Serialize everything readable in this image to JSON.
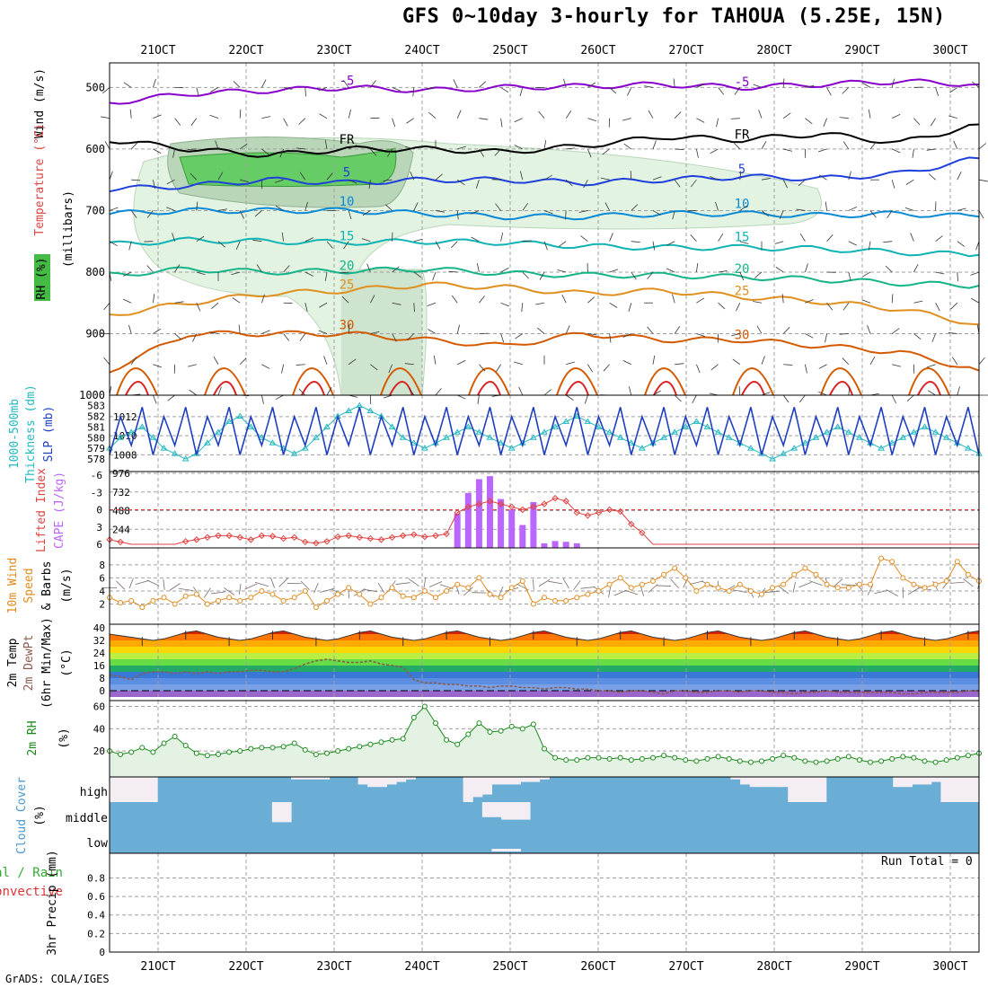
{
  "title": "GFS 0~10day 3-hourly for TAHOUA (5.25E, 15N)",
  "credit": "GrADS: COLA/IGES",
  "run_total": "Run Total = 0",
  "date_ticks": [
    "21OCT",
    "22OCT",
    "23OCT",
    "24OCT",
    "25OCT",
    "26OCT",
    "27OCT",
    "28OCT",
    "29OCT",
    "30OCT"
  ],
  "panel_labels": {
    "profile": [
      "Wind (m/s)",
      "Temperature (°C)",
      "RH (%)",
      "(millibars)"
    ],
    "slp": [
      "1000-500mb",
      "Thickness (dm)",
      "SLP (mb)"
    ],
    "cape": [
      "Lifted Index",
      "CAPE (J/kg)"
    ],
    "wind10": [
      "10m Wind",
      "Speed",
      "(m/s)",
      "& Barbs"
    ],
    "temp2m": [
      "2m Temp",
      "2m DewPt",
      "(6hr Min/Max)",
      "(°C)"
    ],
    "rh2m": [
      "2m RH",
      "(%)"
    ],
    "cloud": [
      "Cloud Cover",
      "(%)"
    ],
    "precip": [
      "Total / Rain",
      "Convective",
      "3hr Precip (mm)"
    ]
  },
  "chart_data": [
    {
      "type": "heatmap",
      "panel": "profile",
      "y_ticks": [
        500,
        600,
        700,
        800,
        900,
        1000
      ],
      "ylim": [
        1000,
        460
      ],
      "temperature_contours": [
        {
          "label": "-5",
          "color": "#8800cc",
          "levels": [
            525,
            510,
            505,
            500,
            505,
            500,
            498,
            495,
            500,
            495,
            490,
            495
          ]
        },
        {
          "label": "FR",
          "color": "#000000",
          "levels": [
            585,
            600,
            610,
            600,
            600,
            605,
            595,
            580,
            585,
            575,
            590,
            560
          ]
        },
        {
          "label": "5",
          "color": "#1f3fdb",
          "levels": [
            665,
            660,
            650,
            655,
            650,
            650,
            655,
            650,
            645,
            648,
            640,
            615
          ]
        },
        {
          "label": "10",
          "color": "#0a8ad6",
          "levels": [
            705,
            700,
            700,
            700,
            705,
            710,
            710,
            705,
            705,
            708,
            705,
            710
          ]
        },
        {
          "label": "15",
          "color": "#10b3b3",
          "levels": [
            755,
            748,
            750,
            752,
            750,
            752,
            758,
            760,
            760,
            762,
            768,
            772
          ]
        },
        {
          "label": "20",
          "color": "#15b38a",
          "levels": [
            805,
            795,
            800,
            798,
            795,
            802,
            805,
            805,
            808,
            812,
            818,
            822
          ]
        },
        {
          "label": "25",
          "color": "#e09020",
          "levels": [
            870,
            850,
            835,
            830,
            820,
            825,
            835,
            830,
            840,
            848,
            860,
            885
          ]
        },
        {
          "label": "30",
          "color": "#d45a00",
          "levels": [
            960,
            900,
            900,
            900,
            910,
            920,
            900,
            910,
            910,
            920,
            930,
            960
          ]
        }
      ],
      "rh_levels": [
        "30",
        "70",
        "90"
      ]
    },
    {
      "type": "line",
      "panel": "slp",
      "series": [
        {
          "name": "SLP (mb)",
          "color": "#1f3fbf",
          "values": [
            1008,
            1012,
            1009,
            1013,
            1008,
            1012,
            1009,
            1013,
            1008,
            1012,
            1009,
            1013,
            1008,
            1012,
            1009,
            1013,
            1008,
            1012,
            1009,
            1013,
            1008,
            1012,
            1009,
            1013,
            1008,
            1012,
            1009,
            1013,
            1008,
            1012,
            1009,
            1013,
            1008,
            1012,
            1009,
            1013,
            1008,
            1012,
            1009,
            1013,
            1008,
            1012,
            1009,
            1013,
            1008,
            1012,
            1009,
            1013,
            1008,
            1012,
            1009,
            1013,
            1008,
            1012,
            1009,
            1013,
            1008,
            1012,
            1009,
            1013,
            1008,
            1012,
            1009,
            1013,
            1008,
            1012,
            1009,
            1013,
            1008,
            1012,
            1009,
            1013,
            1008,
            1012,
            1009,
            1013,
            1008,
            1012,
            1009,
            1013,
            1008
          ]
        },
        {
          "name": "1000-500mb Thickness (dm)",
          "color": "#22b8c0",
          "values": [
            579,
            580,
            580.5,
            581,
            580,
            579,
            578.5,
            578,
            578.5,
            579.5,
            580.5,
            581.5,
            582,
            581,
            580,
            579.5,
            579,
            578.5,
            579,
            580,
            581,
            582,
            582.5,
            583,
            582.5,
            582,
            581,
            580,
            579.5,
            579,
            579.5,
            580,
            580.5,
            581,
            580.5,
            580,
            579.5,
            579,
            579.5,
            580,
            580.5,
            581,
            581.5,
            582,
            581.5,
            581,
            580.5,
            580,
            579.5,
            579,
            579.5,
            580,
            580.5,
            581,
            581.5,
            581,
            580.5,
            580,
            579.5,
            579,
            578.5,
            578,
            578.5,
            579,
            579.5,
            580,
            580.5,
            581,
            580.5,
            580,
            579.5,
            579,
            579.5,
            580,
            580.5,
            581,
            580.5,
            580,
            579.5,
            579,
            578.5
          ]
        }
      ],
      "y_ticks_left": [
        578,
        579,
        580,
        581,
        582,
        583
      ],
      "y_ticks_right": [
        1008,
        1010,
        1012
      ]
    },
    {
      "type": "bar",
      "panel": "cape",
      "cape_values": [
        0,
        0,
        0,
        0,
        0,
        0,
        0,
        0,
        0,
        0,
        0,
        0,
        0,
        0,
        0,
        0,
        0,
        0,
        0,
        0,
        0,
        0,
        0,
        0,
        0,
        0,
        0,
        0,
        0,
        0,
        0,
        0,
        450,
        720,
        900,
        940,
        640,
        500,
        300,
        600,
        60,
        90,
        80,
        60,
        0,
        0,
        0,
        0,
        0,
        0,
        0,
        0,
        0,
        0,
        0,
        0,
        0,
        0,
        0,
        0,
        0,
        0,
        0,
        0,
        0,
        0,
        0,
        0,
        0,
        0,
        0,
        0,
        0,
        0,
        0,
        0,
        0,
        0,
        0,
        0,
        0
      ],
      "lifted_index": [
        5.2,
        5.6,
        6,
        6,
        6,
        6,
        6,
        5.5,
        5.2,
        4.8,
        4.5,
        4.5,
        4.8,
        5.2,
        4.5,
        4.6,
        5,
        4.8,
        5.6,
        5.8,
        5.5,
        4.7,
        4.5,
        4.8,
        5,
        5.2,
        4.8,
        4.5,
        4.3,
        4.7,
        4.5,
        4.2,
        0.5,
        -0.5,
        -1,
        -1.5,
        -1,
        -0.5,
        0,
        -0.5,
        -1,
        -2,
        -1.5,
        0.5,
        1,
        0.5,
        0,
        0.3,
        2.5,
        4,
        6,
        6,
        6,
        6,
        6,
        6,
        6,
        6,
        6,
        6,
        6,
        6,
        6,
        6,
        6,
        6,
        6,
        6,
        6,
        6,
        6,
        6,
        6,
        6,
        6,
        6,
        6,
        6,
        6,
        6,
        6
      ],
      "y_ticks_left": [
        "-6",
        "-3",
        "0",
        "3",
        "6"
      ],
      "y_ticks_right": [
        244,
        488,
        732,
        976
      ]
    },
    {
      "type": "line",
      "panel": "wind10",
      "series": [
        {
          "name": "10m Wind Speed",
          "color": "#e08a1e",
          "values": [
            3,
            2.2,
            2.5,
            1.5,
            2.5,
            3,
            2,
            3.2,
            3.5,
            2,
            2.5,
            3,
            2.5,
            3,
            4,
            3.5,
            2.5,
            3,
            4,
            1.5,
            2.5,
            3.5,
            4.5,
            3.5,
            2,
            3,
            4.5,
            3.2,
            3,
            4,
            3,
            4,
            5,
            4.5,
            6,
            3.5,
            3,
            4.5,
            5.5,
            2,
            3,
            2.5,
            2.5,
            3,
            3.5,
            4,
            5,
            6,
            4.5,
            5,
            5.5,
            6.5,
            7.5,
            6,
            4,
            5,
            4.5,
            4,
            5,
            4,
            3.5,
            4.5,
            5,
            6.5,
            7.5,
            6.5,
            5,
            4.5,
            4.5,
            5,
            5,
            9,
            8.5,
            6,
            5,
            4.5,
            5,
            5.5,
            8.5,
            6.5,
            5.5
          ]
        }
      ],
      "y_ticks": [
        2,
        4,
        6,
        8
      ]
    },
    {
      "type": "area",
      "panel": "temp2m",
      "series": [
        {
          "name": "2m Temp",
          "color": "#333333",
          "values": [
            36,
            35,
            34,
            33,
            32,
            33,
            35,
            37,
            38,
            36,
            34,
            33,
            32,
            33,
            35,
            37,
            38,
            36,
            34,
            33,
            32,
            33,
            35,
            37,
            38,
            36,
            34,
            33,
            32,
            33,
            35,
            37,
            38,
            36,
            34,
            33,
            32,
            33,
            35,
            37,
            38,
            36,
            34,
            33,
            32,
            33,
            35,
            37,
            38,
            36,
            34,
            33,
            32,
            33,
            35,
            37,
            38,
            36,
            34,
            33,
            32,
            33,
            35,
            37,
            38,
            36,
            34,
            33,
            32,
            33,
            35,
            37,
            38,
            36,
            34,
            33,
            32,
            33,
            35,
            37,
            38
          ]
        },
        {
          "name": "2m DewPt",
          "color": "#8a5a4a",
          "values": [
            10,
            9,
            7,
            11,
            12,
            12,
            11,
            12,
            11,
            12,
            11,
            12,
            12,
            13,
            13,
            12,
            12,
            14,
            17,
            19,
            20,
            19,
            18,
            18,
            19,
            17,
            16,
            15,
            7,
            5,
            5,
            4,
            4,
            3,
            3,
            2,
            3,
            3,
            2,
            2,
            1,
            2,
            2,
            1,
            1,
            0,
            0,
            -1,
            0,
            0,
            -1,
            -2,
            0,
            0,
            -1,
            -1,
            0,
            0,
            -1,
            0,
            0,
            -1,
            -1,
            -2,
            -1,
            -1,
            0,
            -1,
            -1,
            -1,
            -1,
            -1,
            -1,
            -2,
            -2,
            -1,
            -1,
            -1,
            -1,
            0,
            0
          ]
        }
      ],
      "y_ticks": [
        0,
        8,
        16,
        24,
        32,
        40
      ]
    },
    {
      "type": "area",
      "panel": "rh2m",
      "series": [
        {
          "name": "2m RH",
          "color": "#1a8a1a",
          "values": [
            20,
            17,
            19,
            23,
            19,
            27,
            33,
            25,
            18,
            16,
            17,
            19,
            20,
            22,
            23,
            23,
            24,
            27,
            21,
            17,
            18,
            20,
            22,
            24,
            26,
            28,
            30,
            31,
            50,
            60,
            45,
            30,
            26,
            35,
            45,
            37,
            38,
            42,
            40,
            44,
            22,
            14,
            12,
            12,
            14,
            14,
            13,
            14,
            12,
            13,
            14,
            16,
            14,
            12,
            11,
            13,
            15,
            13,
            11,
            10,
            11,
            13,
            16,
            14,
            11,
            10,
            11,
            13,
            15,
            12,
            10,
            11,
            13,
            15,
            14,
            11,
            10,
            12,
            14,
            16,
            18
          ]
        }
      ],
      "y_ticks": [
        20,
        40,
        60
      ]
    },
    {
      "type": "bar",
      "panel": "cloud",
      "categories": [
        "high",
        "middle",
        "low"
      ],
      "high": [
        0,
        0,
        0,
        0,
        0,
        100,
        100,
        100,
        100,
        100,
        100,
        100,
        100,
        100,
        100,
        100,
        100,
        100,
        100,
        90,
        90,
        90,
        90,
        100,
        100,
        100,
        70,
        60,
        60,
        70,
        80,
        90,
        100,
        100,
        100,
        100,
        100,
        0,
        20,
        30,
        70,
        70,
        70,
        80,
        80,
        90,
        100,
        100,
        100,
        100,
        100,
        100,
        100,
        100,
        100,
        100,
        100,
        100,
        100,
        100,
        100,
        100,
        100,
        100,
        100,
        90,
        70,
        60,
        60,
        60,
        60,
        0,
        0,
        0,
        0,
        100,
        100,
        100,
        100,
        100,
        100,
        100,
        60,
        60,
        70,
        70,
        80,
        0,
        0,
        0,
        0
      ],
      "middle": [
        0,
        0,
        0,
        0,
        0,
        0,
        0,
        0,
        0,
        0,
        0,
        0,
        0,
        0,
        0,
        0,
        0,
        80,
        80,
        0,
        0,
        0,
        0,
        0,
        0,
        0,
        0,
        0,
        0,
        0,
        0,
        0,
        0,
        0,
        0,
        0,
        0,
        0,
        0,
        60,
        60,
        70,
        70,
        70,
        0,
        0,
        0,
        0,
        0,
        0,
        0,
        0,
        0,
        0,
        0,
        0,
        0,
        0,
        0,
        0,
        0,
        0,
        0,
        0,
        0,
        0,
        0,
        0,
        0,
        0,
        0,
        0,
        0,
        0,
        0,
        0,
        0,
        0,
        0,
        0,
        0,
        0,
        0,
        0,
        0,
        0,
        0,
        0,
        0,
        0,
        0
      ],
      "low": [
        0,
        0,
        0,
        0,
        0,
        0,
        0,
        0,
        0,
        0,
        0,
        0,
        0,
        0,
        0,
        0,
        0,
        0,
        0,
        0,
        0,
        0,
        0,
        0,
        0,
        0,
        0,
        0,
        0,
        0,
        0,
        0,
        0,
        0,
        0,
        0,
        0,
        0,
        0,
        0,
        20,
        20,
        20,
        0,
        0,
        0,
        0,
        0,
        0,
        0,
        0,
        0,
        0,
        0,
        0,
        0,
        0,
        0,
        0,
        0,
        0,
        0,
        0,
        0,
        0,
        0,
        0,
        0,
        0,
        0,
        0,
        0,
        0,
        0,
        0,
        0,
        0,
        0,
        0,
        0,
        0,
        0,
        0,
        0,
        0,
        0,
        0,
        0,
        0,
        0,
        0
      ]
    },
    {
      "type": "bar",
      "panel": "precip",
      "values": [],
      "y_ticks": [
        "0",
        "0.2",
        "0.4",
        "0.6",
        "0.8"
      ],
      "ylim": [
        0,
        1
      ]
    }
  ],
  "colors": {
    "grid": "#a0a0a0",
    "rh_light": "#e2f3e2",
    "rh_mid": "#b9d6b9",
    "rh_green": "#66cc66",
    "cloud_blue": "#6aaed6",
    "cloud_clear": "#f4eef4",
    "cape_bar": "#bb66ff",
    "lifted_index": "#e04040",
    "slp_line": "#1f3fbf",
    "thickness_line": "#22b8c0",
    "wind_line": "#e08a1e",
    "rh2m_fill": "#88cc88"
  }
}
